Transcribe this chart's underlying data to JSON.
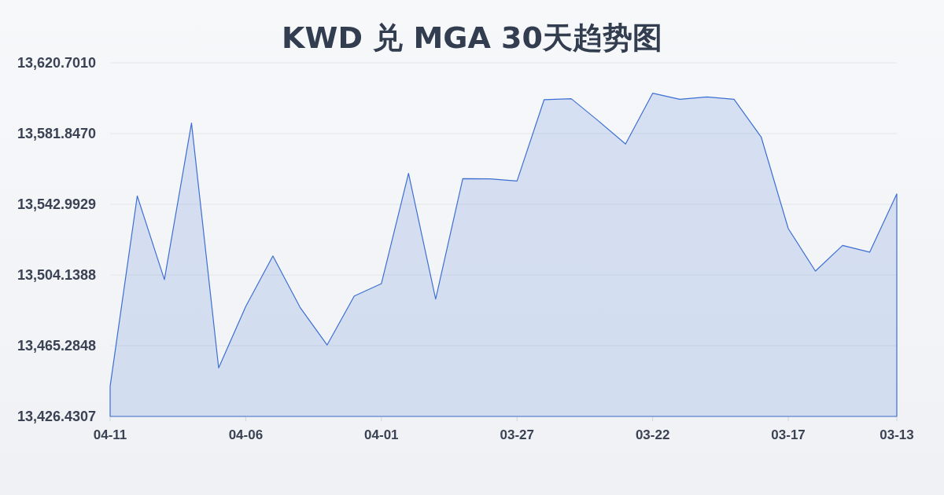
{
  "chart_data": {
    "type": "area",
    "title": "KWD 兑 MGA 30天趋势图",
    "categories": [
      "04-11",
      null,
      null,
      null,
      null,
      "04-06",
      null,
      null,
      null,
      null,
      "04-01",
      null,
      null,
      null,
      null,
      "03-27",
      null,
      null,
      null,
      null,
      "03-22",
      null,
      null,
      null,
      null,
      "03-17",
      null,
      null,
      null,
      "03-13"
    ],
    "series": [
      {
        "color": "#3d6fd2",
        "values": [
          13443.0,
          13547.6,
          13501.6,
          13587.6,
          13453.1,
          13486.9,
          13514.6,
          13486.4,
          13465.7,
          13492.6,
          13499.4,
          13560.0,
          13490.9,
          13557.1,
          13557.0,
          13555.8,
          13600.5,
          13601.0,
          13588.8,
          13576.1,
          13604.0,
          13600.7,
          13602.0,
          13600.7,
          13580.0,
          13529.6,
          13506.3,
          13520.4,
          13516.7,
          13548.7
        ]
      }
    ],
    "ylim": [
      13426.4307,
      13620.701
    ],
    "yticks": [
      {
        "value": 13426.4307,
        "label": "13,426.4307"
      },
      {
        "value": 13465.2848,
        "label": "13,465.2848"
      },
      {
        "value": 13504.1388,
        "label": "13,504.1388"
      },
      {
        "value": 13542.9929,
        "label": "13,542.9929"
      },
      {
        "value": 13581.847,
        "label": "13,581.8470"
      },
      {
        "value": 13620.701,
        "label": "13,620.7010"
      }
    ],
    "grid": "y"
  }
}
